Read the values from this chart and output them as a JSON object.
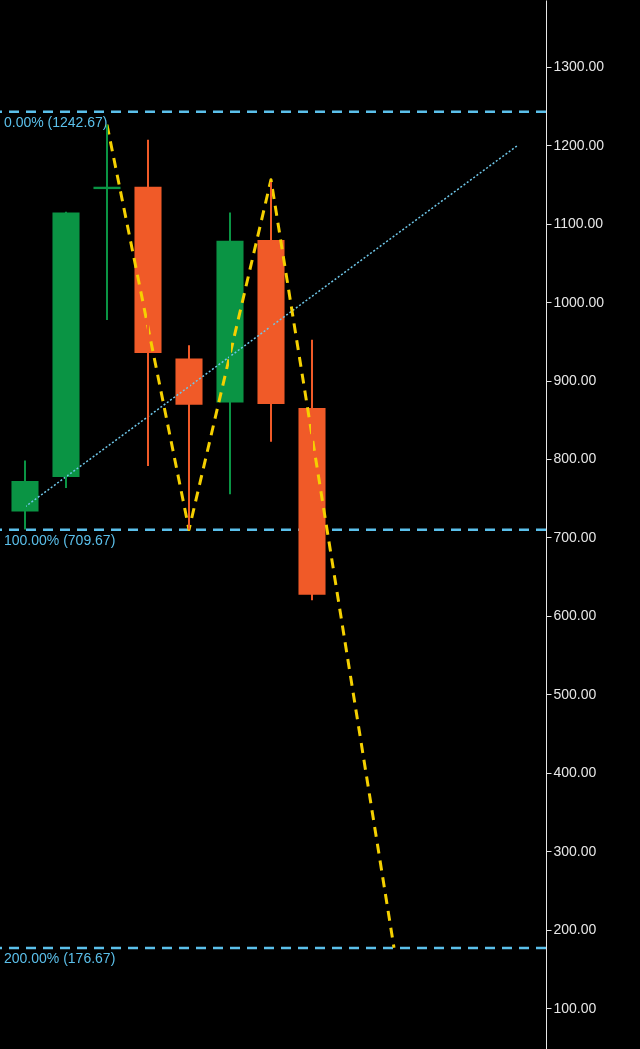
{
  "chart_data": {
    "type": "candlestick",
    "categories": [
      null,
      null,
      null,
      null,
      null,
      null,
      null,
      null,
      null,
      null,
      null,
      null,
      null
    ],
    "ohlc": [
      [
        733,
        798,
        710,
        772
      ],
      [
        777,
        1115,
        763,
        1114
      ],
      [
        1144,
        1226,
        977,
        1147
      ],
      [
        1147,
        1207,
        791,
        935
      ],
      [
        928,
        945,
        710,
        869
      ],
      [
        872,
        1114,
        755,
        1078
      ],
      [
        1079,
        1153,
        822,
        870
      ],
      [
        865,
        952,
        620,
        627
      ],
      null,
      null,
      null,
      null,
      null
    ],
    "colors": [
      "#0a9444",
      "#0a9444",
      "#0a9444",
      "#f05a28",
      "#f05a28",
      "#0a9444",
      "#f05a28",
      "#f05a28",
      null,
      null,
      null,
      null,
      null
    ],
    "series": [
      {
        "type": "line",
        "values": [
          739,
          null,
          null,
          null,
          null,
          null,
          null,
          null,
          null,
          null,
          null,
          null,
          1199
        ],
        "color": "#6ec6e8",
        "line_style": "dotted"
      },
      {
        "type": "line",
        "values": [
          null,
          null,
          1226,
          null,
          710,
          null,
          1156,
          null,
          null,
          177,
          null,
          null,
          null
        ],
        "color": "#f5d000",
        "line_style": "dashed"
      }
    ],
    "ylim": [
      48,
      1385
    ],
    "yticks": [
      {
        "value": 100,
        "label": "100.00"
      },
      {
        "value": 200,
        "label": "200.00"
      },
      {
        "value": 300,
        "label": "300.00"
      },
      {
        "value": 400,
        "label": "400.00"
      },
      {
        "value": 500,
        "label": "500.00"
      },
      {
        "value": 600,
        "label": "600.00"
      },
      {
        "value": 700,
        "label": "700.00"
      },
      {
        "value": 800,
        "label": "800.00"
      },
      {
        "value": 900,
        "label": "900.00"
      },
      {
        "value": 1000,
        "label": "1000.00"
      },
      {
        "value": 1100,
        "label": "1100.00"
      },
      {
        "value": 1200,
        "label": "1200.00"
      },
      {
        "value": 1300,
        "label": "1300.00"
      }
    ],
    "tick_labels": "y",
    "ref_lines": [
      {
        "axis": "y",
        "value": 1242.67,
        "label": "0.00% (1242.67)",
        "color": "#5bc0eb",
        "line_style": "dashed"
      },
      {
        "axis": "y",
        "value": 709.67,
        "label": "100.00% (709.67)",
        "color": "#5bc0eb",
        "line_style": "dashed"
      },
      {
        "axis": "y",
        "value": 176.67,
        "label": "200.00% (176.67)",
        "color": "#5bc0eb",
        "line_style": "dashed"
      }
    ]
  }
}
